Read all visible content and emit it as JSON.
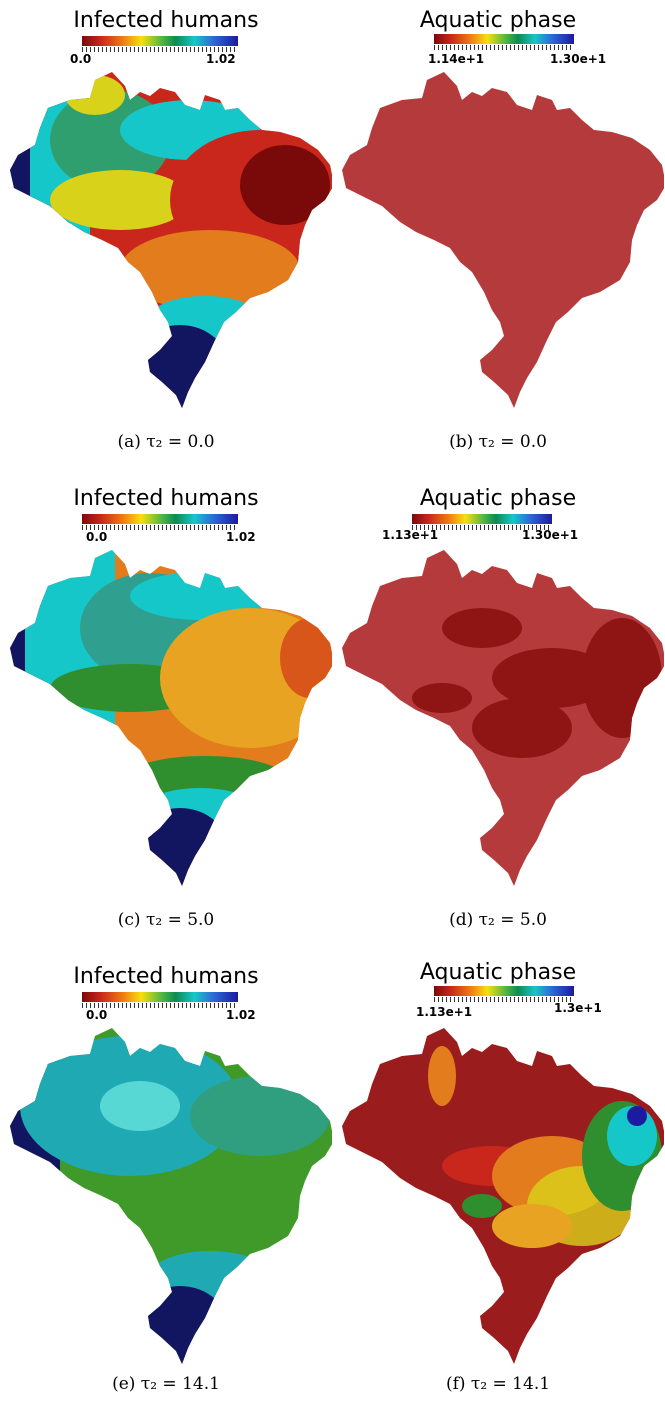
{
  "panels": [
    {
      "title": "Infected humans",
      "min": "0.0",
      "max": "1.02",
      "caption": "(a) τ₂ = 0.0"
    },
    {
      "title": "Aquatic phase",
      "min": "1.14e+1",
      "max": "1.30e+1",
      "caption": "(b) τ₂ = 0.0"
    },
    {
      "title": "Infected humans",
      "min": "0.0",
      "max": "1.02",
      "caption": "(c) τ₂ = 5.0"
    },
    {
      "title": "Aquatic phase",
      "min": "1.13e+1",
      "max": "1.30e+1",
      "caption": "(d) τ₂ = 5.0"
    },
    {
      "title": "Infected humans",
      "min": "0.0",
      "max": "1.02",
      "caption": "(e) τ₂ = 14.1"
    },
    {
      "title": "Aquatic phase",
      "min": "1.13e+1",
      "max": "1.3e+1",
      "caption": "(f) τ₂ = 14.1"
    }
  ],
  "colors": {
    "dark_red": "#7a0a0a",
    "aquatic_base": "#b53a3c",
    "navy": "#121560",
    "cyan": "#1fc9c3",
    "green": "#2f8f2f",
    "yellow": "#d9d21a",
    "orange": "#e27c1d"
  }
}
